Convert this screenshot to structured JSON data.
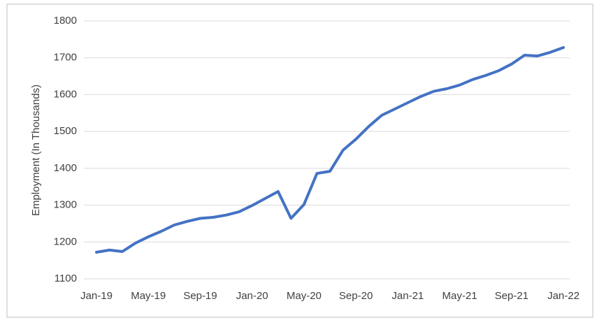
{
  "chart_data": {
    "type": "line",
    "y_label": "Employment (In Thousands)",
    "categories": [
      "Jan-19",
      null,
      null,
      null,
      "May-19",
      null,
      null,
      null,
      "Sep-19",
      null,
      null,
      null,
      "Jan-20",
      null,
      null,
      null,
      "May-20",
      null,
      null,
      null,
      "Sep-20",
      null,
      null,
      null,
      "Jan-21",
      null,
      null,
      null,
      "May-21",
      null,
      null,
      null,
      "Sep-21",
      null,
      null,
      null,
      "Jan-22"
    ],
    "series": [
      {
        "name": "Employment",
        "color": "#4472c4",
        "values": [
          1172,
          1178,
          1174,
          1197,
          1214,
          1229,
          1246,
          1256,
          1264,
          1267,
          1273,
          1282,
          1299,
          1318,
          1337,
          1264,
          1302,
          1386,
          1392,
          1449,
          1479,
          1514,
          1544,
          1561,
          1578,
          1595,
          1609,
          1616,
          1626,
          1641,
          1652,
          1665,
          1683,
          1707,
          1705,
          1715,
          1728
        ]
      }
    ],
    "ylim": [
      1100,
      1800
    ],
    "yticks": [
      1100,
      1200,
      1300,
      1400,
      1500,
      1600,
      1700,
      1800
    ],
    "grid": true
  }
}
